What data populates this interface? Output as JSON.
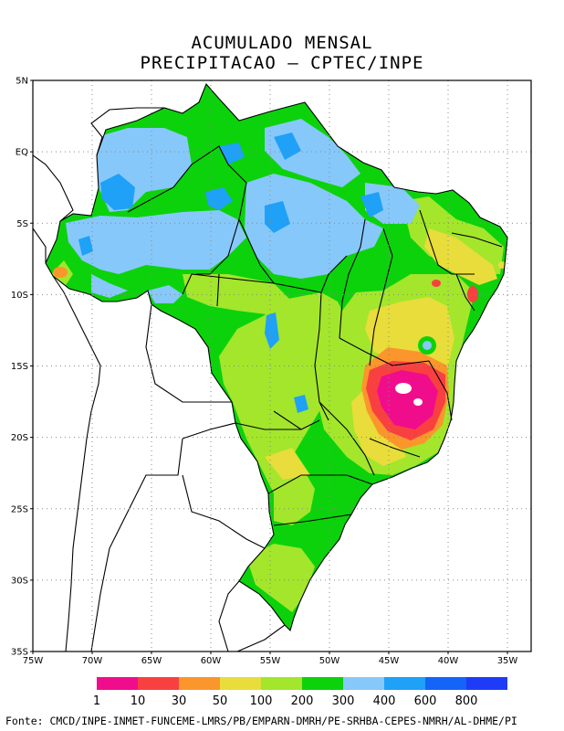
{
  "title": {
    "line1": "ACUMULADO MENSAL",
    "line2": "PRECIPITACAO – CPTEC/INPE"
  },
  "map": {
    "lat_labels": [
      "5N",
      "EQ",
      "5S",
      "10S",
      "15S",
      "20S",
      "25S",
      "30S",
      "35S"
    ],
    "lon_labels": [
      "75W",
      "70W",
      "65W",
      "60W",
      "55W",
      "50W",
      "45W",
      "40W",
      "35W"
    ],
    "lat_values": [
      5,
      0,
      -5,
      -10,
      -15,
      -20,
      -25,
      -30,
      -35
    ],
    "lon_values": [
      -75,
      -70,
      -65,
      -60,
      -55,
      -50,
      -45,
      -40,
      -35
    ]
  },
  "legend": {
    "colors": [
      "#f00d8c",
      "#f94040",
      "#fa962c",
      "#e8dd3a",
      "#a3e62c",
      "#0cd20c",
      "#87c8fa",
      "#1ea1f7",
      "#1464f7",
      "#1e3cf7"
    ],
    "labels": [
      "1",
      "10",
      "30",
      "50",
      "100",
      "200",
      "300",
      "400",
      "600",
      "800"
    ]
  },
  "footer": "Fonte: CMCD/INPE-INMET-FUNCEME-LMRS/PB/EMPARN-DMRH/PE-SRHBA-CEPES-NMRH/AL-DHME/PI"
}
